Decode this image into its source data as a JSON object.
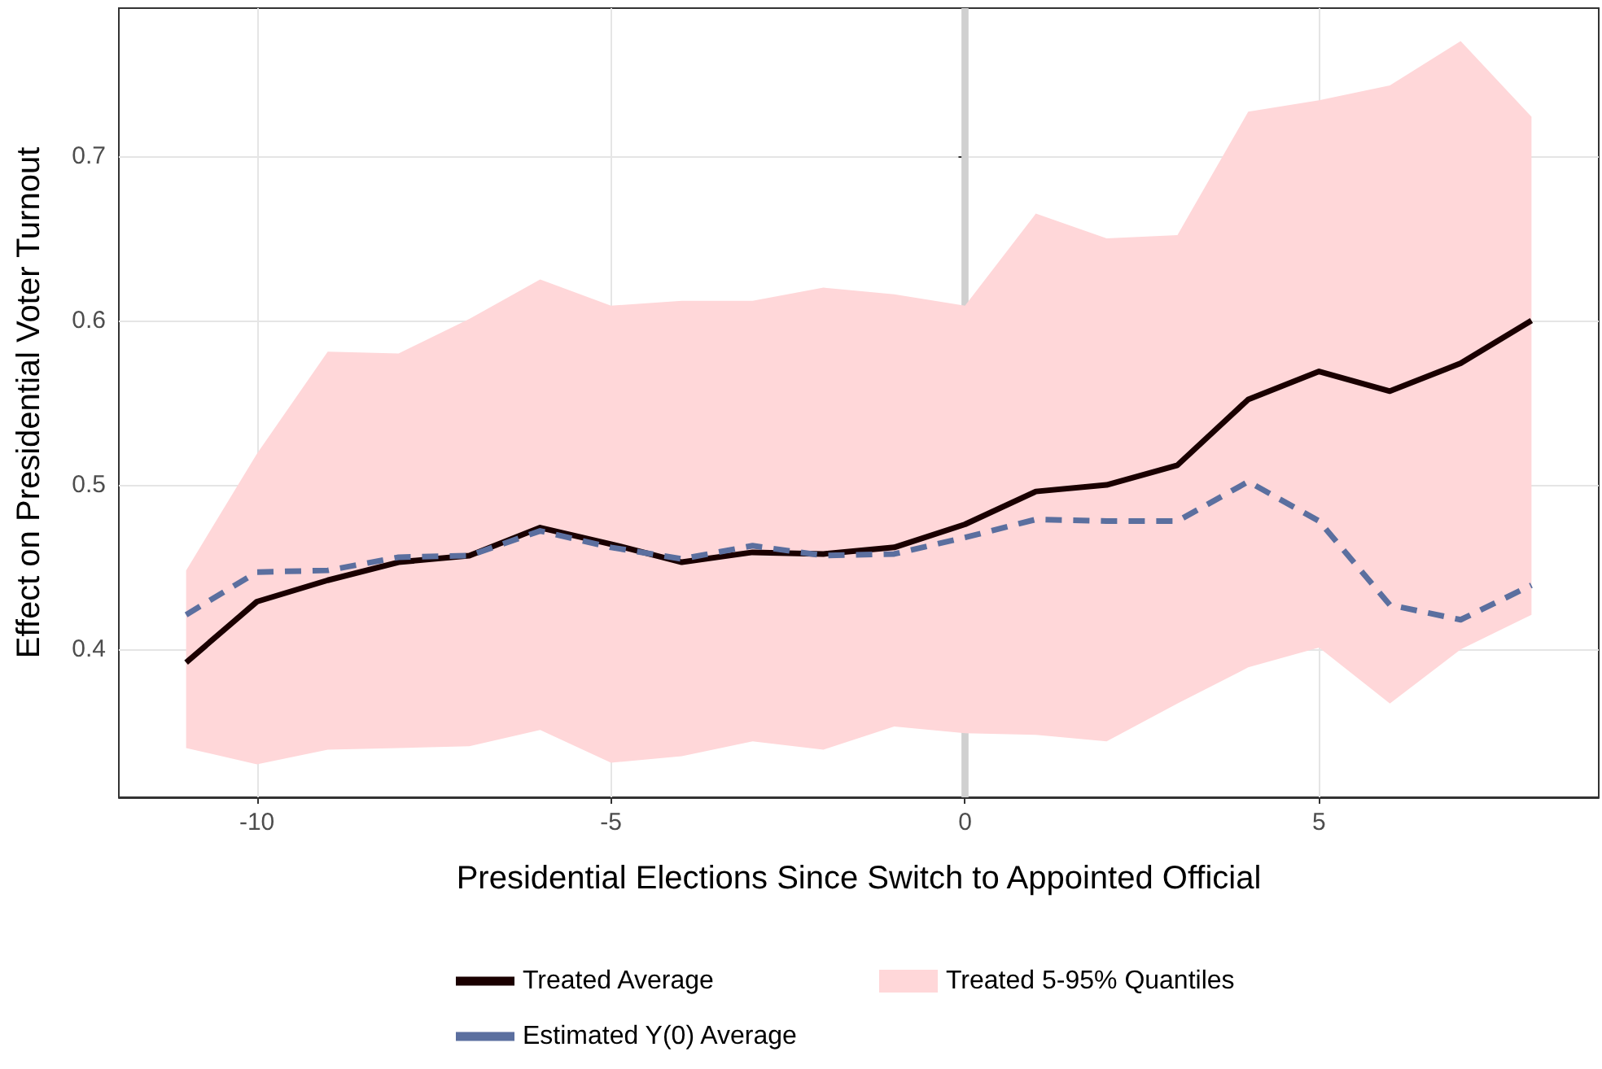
{
  "chart_data": {
    "type": "line",
    "xlabel": "Presidential Elections Since Switch to Appointed Official",
    "ylabel": "Effect on Presidential Voter Turnout",
    "x": [
      -11,
      -10,
      -9,
      -8,
      -7,
      -6,
      -5,
      -4,
      -3,
      -2,
      -1,
      0,
      1,
      2,
      3,
      4,
      5,
      6,
      7,
      8
    ],
    "series": [
      {
        "name": "Treated Average",
        "color": "#1a0000",
        "line_style": "solid",
        "values": [
          0.392,
          0.429,
          0.442,
          0.453,
          0.457,
          0.474,
          0.464,
          0.453,
          0.459,
          0.458,
          0.462,
          0.476,
          0.496,
          0.5,
          0.512,
          0.552,
          0.569,
          0.557,
          0.574,
          0.6
        ]
      },
      {
        "name": "Treated 5-95% Quantiles",
        "type": "area",
        "color": "#ffd7d9",
        "values": [
          null,
          null,
          null,
          null,
          null,
          null,
          null,
          null,
          null,
          null,
          null,
          null,
          null,
          null,
          null,
          null,
          null,
          null,
          null,
          null
        ],
        "lower": [
          0.34,
          0.33,
          0.339,
          0.34,
          0.341,
          0.351,
          0.331,
          0.335,
          0.344,
          0.339,
          0.353,
          0.349,
          0.348,
          0.344,
          0.367,
          0.389,
          0.401,
          0.367,
          0.4,
          0.421
        ],
        "upper": [
          0.448,
          0.519,
          0.581,
          0.58,
          0.601,
          0.625,
          0.609,
          0.612,
          0.612,
          0.62,
          0.616,
          0.609,
          0.665,
          0.65,
          0.652,
          0.727,
          0.734,
          0.743,
          0.77,
          0.724
        ]
      },
      {
        "name": "Estimated Y(0) Average",
        "color": "#5b6f9f",
        "line_style": "dashed",
        "values": [
          0.421,
          0.447,
          0.448,
          0.456,
          0.457,
          0.472,
          0.462,
          0.455,
          0.463,
          0.457,
          0.458,
          0.468,
          0.479,
          0.478,
          0.478,
          0.502,
          0.478,
          0.427,
          0.418,
          0.439
        ]
      }
    ],
    "bands": [
      {
        "axis": "x",
        "from": -0.05,
        "to": 0.05,
        "color": "#d0d0d0"
      }
    ],
    "xlim": [
      -11.95,
      8.95
    ],
    "xticks": [
      -10,
      -5,
      0,
      5
    ],
    "ylim": [
      0.31,
      0.79
    ],
    "yticks": [
      0.4,
      0.5,
      0.6,
      0.7
    ],
    "grid": true,
    "legend": "bottom",
    "marker": "none"
  }
}
